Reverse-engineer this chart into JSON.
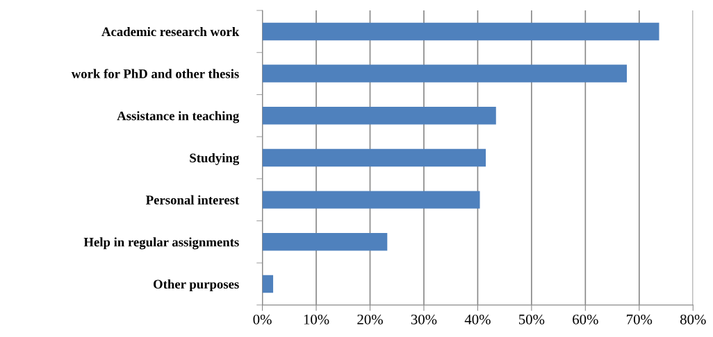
{
  "chart_data": {
    "type": "bar",
    "orientation": "horizontal",
    "categories": [
      "Academic research work",
      "work for PhD and other thesis",
      "Assistance in teaching",
      "Studying",
      "Personal interest",
      "Help in regular assignments",
      "Other purposes"
    ],
    "values": [
      73.7,
      67.7,
      43.4,
      41.5,
      40.4,
      23.2,
      2.0
    ],
    "color": "#4f81bd",
    "xlim": [
      0,
      80
    ],
    "xticks": [
      {
        "value": 0,
        "label": "0%"
      },
      {
        "value": 10,
        "label": "10%"
      },
      {
        "value": 20,
        "label": "20%"
      },
      {
        "value": 30,
        "label": "30%"
      },
      {
        "value": 40,
        "label": "40%"
      },
      {
        "value": 50,
        "label": "50%"
      },
      {
        "value": 60,
        "label": "60%"
      },
      {
        "value": 70,
        "label": "70%"
      },
      {
        "value": 80,
        "label": "80%"
      }
    ],
    "grid": "x",
    "legend": false
  }
}
